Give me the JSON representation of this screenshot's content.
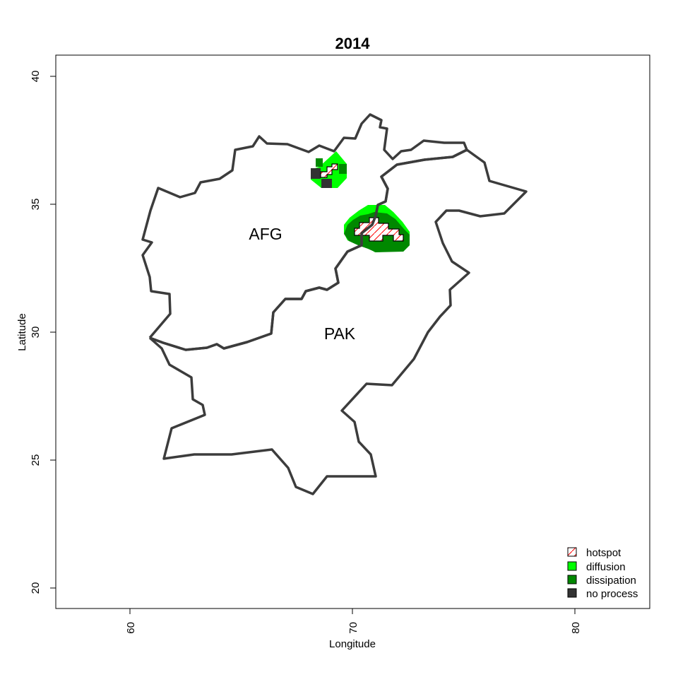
{
  "title": "2014",
  "x_axis": {
    "label": "Longitude",
    "ticks": [
      "60",
      "70",
      "80"
    ]
  },
  "y_axis": {
    "label": "Latitude",
    "ticks": [
      "20",
      "25",
      "30",
      "35",
      "40"
    ]
  },
  "countries": [
    {
      "code": "AFG"
    },
    {
      "code": "PAK"
    }
  ],
  "legend": {
    "placement": "bottom-right",
    "items": [
      {
        "label": "hotspot",
        "color": "#ffffff",
        "hatch_color": "#ff0000"
      },
      {
        "label": "diffusion",
        "color": "#00ff00"
      },
      {
        "label": "dissipation",
        "color": "#008800"
      },
      {
        "label": "no process",
        "color": "#333333"
      }
    ]
  },
  "colors": {
    "border": "#3c3c3c",
    "hotspot_hatch": "#ff0000",
    "diffusion": "#00ff00",
    "dissipation": "#008800",
    "no_process": "#333333"
  }
}
